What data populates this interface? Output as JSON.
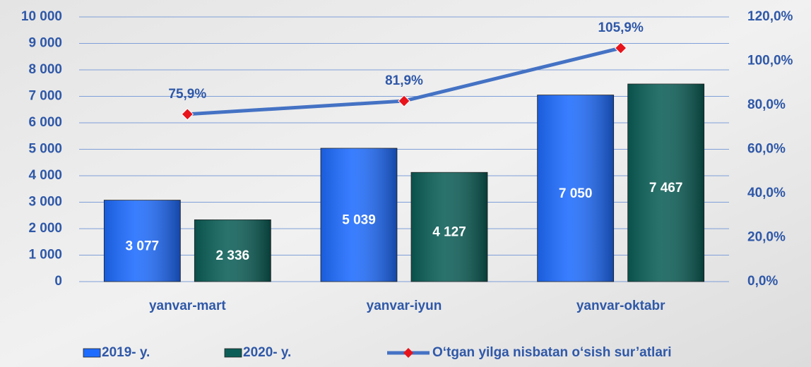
{
  "chart_data": {
    "type": "bar",
    "categories": [
      "yanvar-mart",
      "yanvar-iyun",
      "yanvar-oktabr"
    ],
    "series": [
      {
        "name": "2019- y.",
        "color": "#1e6cff",
        "values": [
          3077,
          5039,
          7050
        ],
        "value_labels": [
          "3 077",
          "5 039",
          "7 050"
        ]
      },
      {
        "name": "2020- y.",
        "color": "#0b5e57",
        "values": [
          2336,
          4127,
          7467
        ],
        "value_labels": [
          "2 336",
          "4 127",
          "7 467"
        ]
      },
      {
        "name": "O‘tgan yilga nisbatan o‘sish sur’atlari",
        "type": "line",
        "axis": "y2",
        "color": "#4472c4",
        "marker_color": "#e8141b",
        "values": [
          75.9,
          81.9,
          105.9
        ],
        "value_labels": [
          "75,9%",
          "81,9%",
          "105,9%"
        ]
      }
    ],
    "ylim": [
      0,
      10000
    ],
    "yticks": [
      0,
      {
        "value": 1000,
        "label": "1 000"
      },
      {
        "value": 2000,
        "label": "2 000"
      },
      {
        "value": 3000,
        "label": "3 000"
      },
      {
        "value": 4000,
        "label": "4 000"
      },
      {
        "value": 5000,
        "label": "5 000"
      },
      {
        "value": 6000,
        "label": "6 000"
      },
      {
        "value": 7000,
        "label": "7 000"
      },
      {
        "value": 8000,
        "label": "8 000"
      },
      {
        "value": 9000,
        "label": "9 000"
      },
      {
        "value": 10000,
        "label": "10 000"
      }
    ],
    "y2lim": [
      0,
      120
    ],
    "y2ticks": [
      {
        "value": 0,
        "label": "0,0%"
      },
      {
        "value": 20,
        "label": "20,0%"
      },
      {
        "value": 40,
        "label": "40,0%"
      },
      {
        "value": 60,
        "label": "60,0%"
      },
      {
        "value": 80,
        "label": "80,0%"
      },
      {
        "value": 100,
        "label": "100,0%"
      },
      {
        "value": 120,
        "label": "120,0%"
      }
    ],
    "grid": true,
    "legend": "bottom"
  }
}
